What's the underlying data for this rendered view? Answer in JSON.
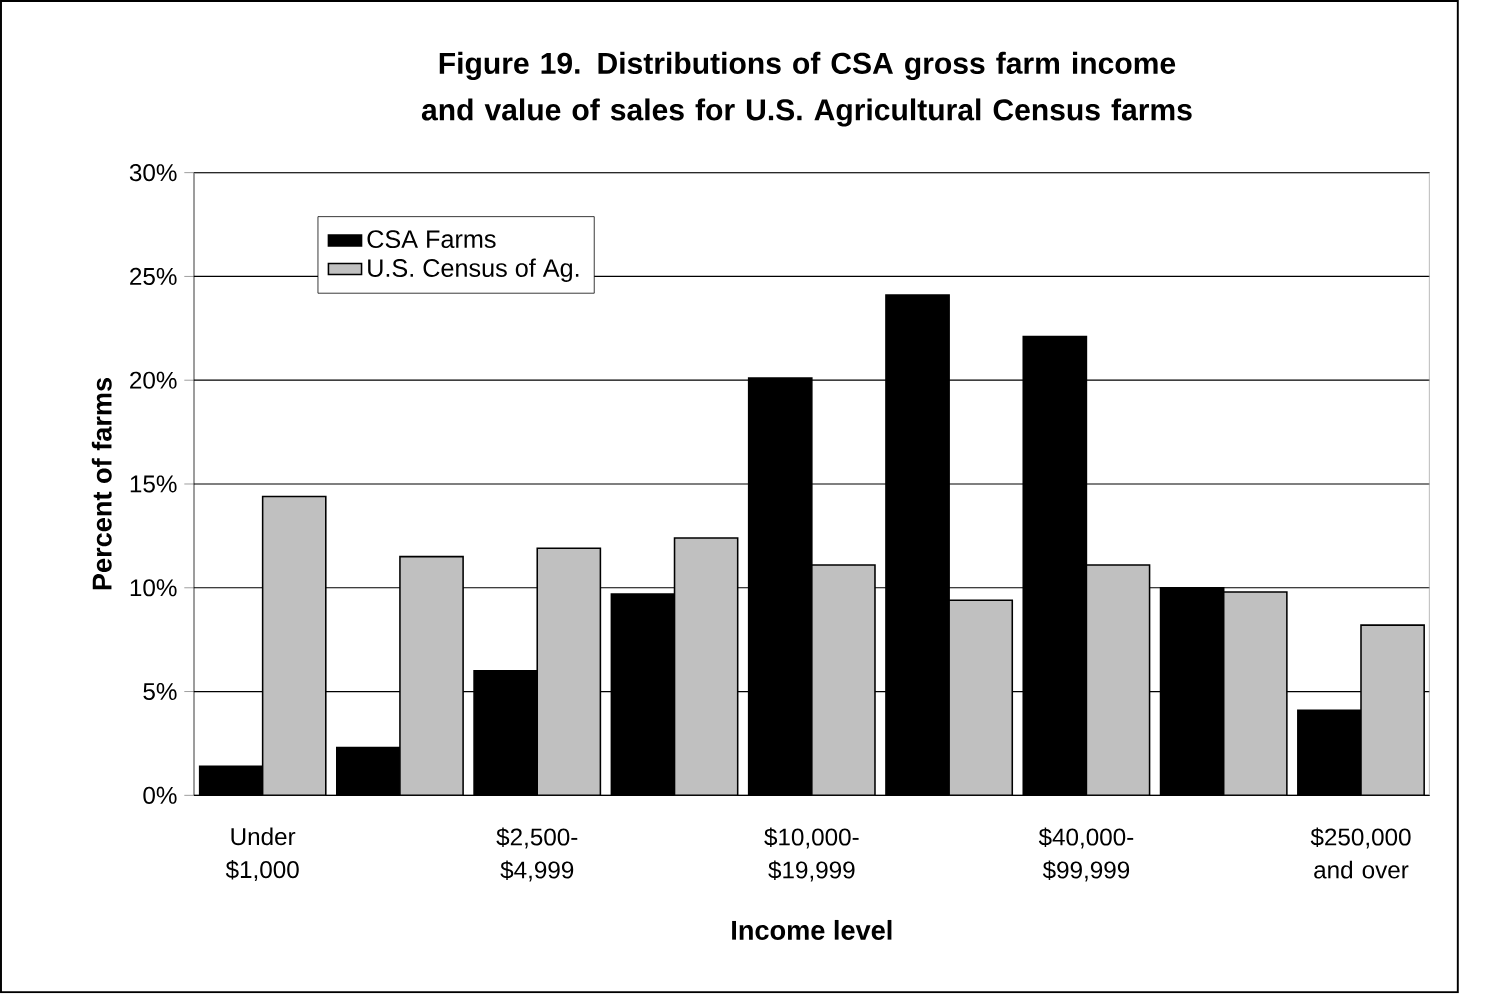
{
  "chart_data": {
    "type": "bar",
    "title": "Figure 19.  Distributions of CSA gross farm income and value of sales for U.S. Agricultural Census farms",
    "xlabel": "Income level",
    "ylabel": "Percent of farms",
    "categories": [
      "Under $1,000",
      null,
      "$2,500-$4,999",
      null,
      "$10,000-$19,999",
      null,
      "$40,000-$99,999",
      null,
      "$250,000 and over"
    ],
    "series": [
      {
        "name": "CSA Farms",
        "color": "#000000",
        "values": [
          1.4,
          2.3,
          6.0,
          9.7,
          20.1,
          24.1,
          22.1,
          10.0,
          4.1
        ]
      },
      {
        "name": "U.S. Census of Ag.",
        "color": "#c0c0c0",
        "values": [
          14.4,
          11.5,
          11.9,
          12.4,
          11.1,
          9.4,
          11.1,
          9.8,
          8.2
        ]
      }
    ],
    "ylim": [
      0,
      30
    ],
    "yticks": [
      {
        "value": 0,
        "label": "0%"
      },
      {
        "value": 5,
        "label": "5%"
      },
      {
        "value": 10,
        "label": "10%"
      },
      {
        "value": 15,
        "label": "15%"
      },
      {
        "value": 20,
        "label": "20%"
      },
      {
        "value": 25,
        "label": "25%"
      },
      {
        "value": 30,
        "label": "30%"
      }
    ],
    "grid": "y",
    "legend": "top left"
  }
}
